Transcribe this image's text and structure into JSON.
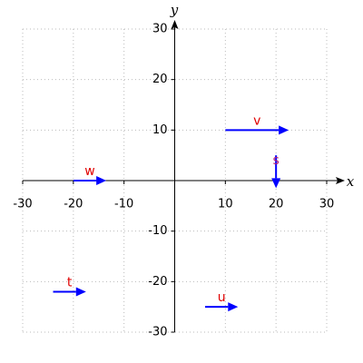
{
  "chart_data": {
    "type": "vector",
    "xlabel": "x",
    "ylabel": "y",
    "xlim": [
      -30,
      30
    ],
    "ylim": [
      -30,
      30
    ],
    "xticks": [
      -30,
      -20,
      -10,
      10,
      20,
      30
    ],
    "yticks": [
      -30,
      -20,
      -10,
      10,
      20,
      30
    ],
    "grid": true,
    "vectors": [
      {
        "name": "v",
        "x": 10,
        "y": 10,
        "dx": 12.5,
        "dy": 0,
        "color": "#0000ff",
        "label_color": "#e00000"
      },
      {
        "name": "s",
        "x": 20,
        "y": 5,
        "dx": 0,
        "dy": -6.5,
        "color": "#0000ff",
        "label_color": "#b0207a"
      },
      {
        "name": "w",
        "x": -20,
        "y": 0,
        "dx": 6.5,
        "dy": 0,
        "color": "#0000ff",
        "label_color": "#e00000"
      },
      {
        "name": "t",
        "x": -24,
        "y": -22,
        "dx": 6.5,
        "dy": 0,
        "color": "#0000ff",
        "label_color": "#e00000"
      },
      {
        "name": "u",
        "x": 6,
        "y": -25,
        "dx": 6.5,
        "dy": 0,
        "color": "#0000ff",
        "label_color": "#e00000"
      }
    ]
  }
}
